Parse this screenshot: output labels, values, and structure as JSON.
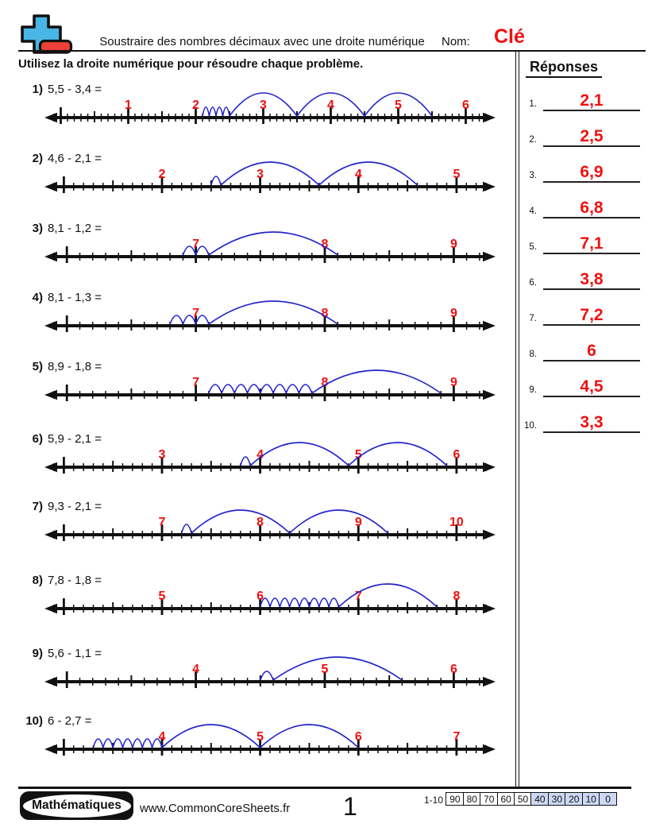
{
  "header": {
    "title": "Soustraire des nombres décimaux avec une droite numérique",
    "name_label": "Nom:",
    "name_value": "Clé",
    "logo_icon": "plus-minus"
  },
  "instruction": "Utilisez la droite numérique pour résoudre chaque problème.",
  "answers": {
    "title": "Réponses",
    "items": [
      {
        "num": "1.",
        "value": "2,1"
      },
      {
        "num": "2.",
        "value": "2,5"
      },
      {
        "num": "3.",
        "value": "6,9"
      },
      {
        "num": "4.",
        "value": "6,8"
      },
      {
        "num": "5.",
        "value": "7,1"
      },
      {
        "num": "6.",
        "value": "3,8"
      },
      {
        "num": "7.",
        "value": "7,2"
      },
      {
        "num": "8.",
        "value": "6"
      },
      {
        "num": "9.",
        "value": "4,5"
      },
      {
        "num": "10.",
        "value": "3,3"
      }
    ]
  },
  "problems": [
    {
      "num": "1)",
      "expression": "5,5 - 3,4 =",
      "labels": [
        1,
        2,
        3,
        4,
        5,
        6
      ],
      "range": [
        -0.1,
        6.3
      ],
      "hops": {
        "small": [
          2.1,
          2.5
        ],
        "big": [
          2.5,
          5.5
        ]
      }
    },
    {
      "num": "2)",
      "expression": "4,6 - 2,1 =",
      "labels": [
        2,
        3,
        4,
        5
      ],
      "range": [
        0.9,
        5.3
      ],
      "hops": {
        "small": [
          2.5,
          2.6
        ],
        "big": [
          2.6,
          4.6
        ]
      }
    },
    {
      "num": "3)",
      "expression": "8,1 - 1,2 =",
      "labels": [
        7,
        8,
        9
      ],
      "range": [
        5.9,
        9.25
      ],
      "hops": {
        "small": [
          6.9,
          7.1
        ],
        "big": [
          7.1,
          8.1
        ]
      }
    },
    {
      "num": "4)",
      "expression": "8,1 - 1,3 =",
      "labels": [
        7,
        8,
        9
      ],
      "range": [
        5.9,
        9.25
      ],
      "hops": {
        "small": [
          6.8,
          7.1
        ],
        "big": [
          7.1,
          8.1
        ]
      }
    },
    {
      "num": "5)",
      "expression": "8,9 - 1,8 =",
      "labels": [
        7,
        8,
        9
      ],
      "range": [
        5.9,
        9.25
      ],
      "hops": {
        "small": [
          7.1,
          7.9
        ],
        "big": [
          7.9,
          8.9
        ]
      }
    },
    {
      "num": "6)",
      "expression": "5,9 - 2,1 =",
      "labels": [
        3,
        4,
        5,
        6
      ],
      "range": [
        1.9,
        6.3
      ],
      "hops": {
        "small": [
          3.8,
          3.9
        ],
        "big": [
          3.9,
          5.9
        ]
      }
    },
    {
      "num": "7)",
      "expression": "9,3 - 2,1 =",
      "labels": [
        7,
        8,
        9,
        10
      ],
      "range": [
        5.9,
        10.3
      ],
      "hops": {
        "small": [
          7.2,
          7.3
        ],
        "big": [
          7.3,
          9.3
        ]
      }
    },
    {
      "num": "8)",
      "expression": "7,8 - 1,8 =",
      "labels": [
        5,
        6,
        7,
        8
      ],
      "range": [
        3.9,
        8.3
      ],
      "hops": {
        "small": [
          6.0,
          6.8
        ],
        "big": [
          6.8,
          7.8
        ]
      }
    },
    {
      "num": "9)",
      "expression": "5,6 - 1,1 =",
      "labels": [
        4,
        5,
        6
      ],
      "range": [
        2.9,
        6.25
      ],
      "hops": {
        "small": [
          4.5,
          4.6
        ],
        "big": [
          4.6,
          5.6
        ]
      }
    },
    {
      "num": "10)",
      "expression": "6 - 2,7 =",
      "labels": [
        4,
        5,
        6,
        7
      ],
      "range": [
        2.9,
        7.3
      ],
      "hops": {
        "small": [
          3.3,
          4.0
        ],
        "big": [
          4.0,
          6.0
        ]
      }
    }
  ],
  "footer": {
    "badge": "Mathématiques",
    "website": "www.CommonCoreSheets.fr",
    "page_number": "1",
    "score_label": "1-10",
    "score_cells": [
      {
        "value": "90",
        "highlight": false
      },
      {
        "value": "80",
        "highlight": false
      },
      {
        "value": "70",
        "highlight": false
      },
      {
        "value": "60",
        "highlight": false
      },
      {
        "value": "50",
        "highlight": false
      },
      {
        "value": "40",
        "highlight": true
      },
      {
        "value": "30",
        "highlight": true
      },
      {
        "value": "20",
        "highlight": true
      },
      {
        "value": "10",
        "highlight": true
      },
      {
        "value": "0",
        "highlight": true
      }
    ]
  },
  "colors": {
    "accent_red": "#ee1111",
    "arc_blue": "#2323cc",
    "line_black": "#111111",
    "logo_blue": "#49b6e6",
    "logo_red": "#ee4036",
    "score_highlight": "#ccd8f4"
  }
}
